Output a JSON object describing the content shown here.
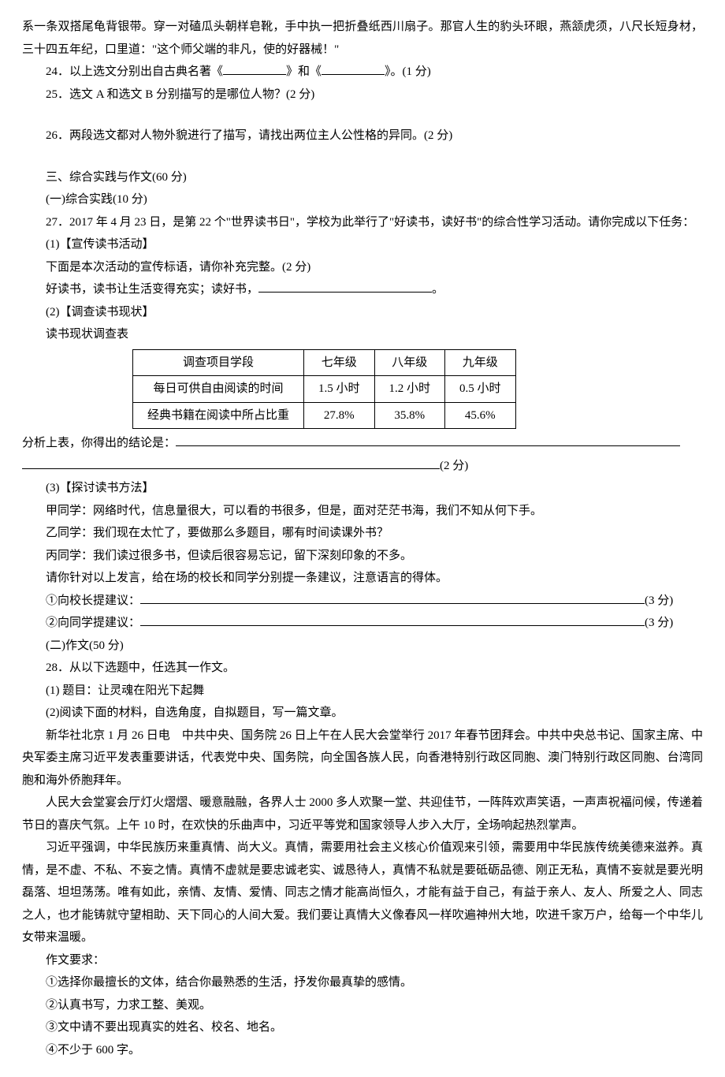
{
  "intro": {
    "line1": "系一条双搭尾龟背银带。穿一对磕瓜头朝样皂靴，手中执一把折叠纸西川扇子。那官人生的豹头环眼，燕颔虎须，八尺长短身材，三十四五年纪，口里道：\"这个师父端的非凡，使的好器械！\""
  },
  "q24": {
    "prefix": "24．以上选文分别出自古典名著《",
    "mid": "》和《",
    "suffix": "》。(1 分)"
  },
  "q25": "25．选文 A 和选文 B 分别描写的是哪位人物？(2 分)",
  "q26": "26．两段选文都对人物外貌进行了描写，请找出两位主人公性格的异同。(2 分)",
  "section3": "三、综合实践与作文(60 分)",
  "section3_1": "(一)综合实践(10 分)",
  "q27": {
    "intro": "27．2017 年 4 月 23 日，是第 22 个\"世界读书日\"，学校为此举行了\"好读书，读好书\"的综合性学习活动。请你完成以下任务：",
    "p1_title": "(1)【宣传读书活动】",
    "p1_line": "下面是本次活动的宣传标语，请你补充完整。(2 分)",
    "p1_slogan": "好读书，读书让生活变得充实；读好书，",
    "p1_end": "。",
    "p2_title": "(2)【调查读书现状】",
    "p2_label": "读书现状调查表",
    "table": {
      "headers": [
        "调查项目学段",
        "七年级",
        "八年级",
        "九年级"
      ],
      "row1": [
        "每日可供自由阅读的时间",
        "1.5 小时",
        "1.2 小时",
        "0.5 小时"
      ],
      "row2": [
        "经典书籍在阅读中所占比重",
        "27.8%",
        "35.8%",
        "45.6%"
      ]
    },
    "p2_conclusion_label": "分析上表，你得出的结论是：",
    "p2_score": "(2 分)",
    "p3_title": "(3)【探讨读书方法】",
    "p3_a": "甲同学：网络时代，信息量很大，可以看的书很多，但是，面对茫茫书海，我们不知从何下手。",
    "p3_b": "乙同学：我们现在太忙了，要做那么多题目，哪有时间读课外书？",
    "p3_c": "丙同学：我们读过很多书，但读后很容易忘记，留下深刻印象的不多。",
    "p3_instruction": "请你针对以上发言，给在场的校长和同学分别提一条建议，注意语言的得体。",
    "p3_s1_label": "①向校长提建议：",
    "p3_s1_score": "(3 分)",
    "p3_s2_label": "②向同学提建议：",
    "p3_s2_score": "(3 分)"
  },
  "section3_2": "(二)作文(50 分)",
  "q28": {
    "intro": "28．从以下选题中，任选其一作文。",
    "opt1": "(1) 题目：让灵魂在阳光下起舞",
    "opt2": " (2)阅读下面的材料，自选角度，自拟题目，写一篇文章。",
    "para1": "新华社北京 1 月 26 日电　中共中央、国务院 26 日上午在人民大会堂举行 2017 年春节团拜会。中共中央总书记、国家主席、中央军委主席习近平发表重要讲话，代表党中央、国务院，向全国各族人民，向香港特别行政区同胞、澳门特别行政区同胞、台湾同胞和海外侨胞拜年。",
    "para2": "人民大会堂宴会厅灯火熠熠、暖意融融，各界人士 2000 多人欢聚一堂、共迎佳节，一阵阵欢声笑语，一声声祝福问候，传递着节日的喜庆气氛。上午 10 时，在欢快的乐曲声中，习近平等党和国家领导人步入大厅，全场响起热烈掌声。",
    "para3": "习近平强调，中华民族历来重真情、尚大义。真情，需要用社会主义核心价值观来引领，需要用中华民族传统美德来滋养。真情，是不虚、不私、不妄之情。真情不虚就是要忠诚老实、诚恳待人，真情不私就是要砥砺品德、刚正无私，真情不妄就是要光明磊落、坦坦荡荡。唯有如此，亲情、友情、爱情、同志之情才能高尚恒久，才能有益于自己，有益于亲人、友人、所爱之人、同志之人，也才能铸就守望相助、天下同心的人间大爱。我们要让真情大义像春风一样吹遍神州大地，吹进千家万户，给每一个中华儿女带来温暖。",
    "req_title": "作文要求：",
    "req1": "①选择你最擅长的文体，结合你最熟悉的生活，抒发你最真挚的感情。",
    "req2": "②认真书写，力求工整、美观。",
    "req3": "③文中请不要出现真实的姓名、校名、地名。",
    "req4": "④不少于 600 字。"
  }
}
